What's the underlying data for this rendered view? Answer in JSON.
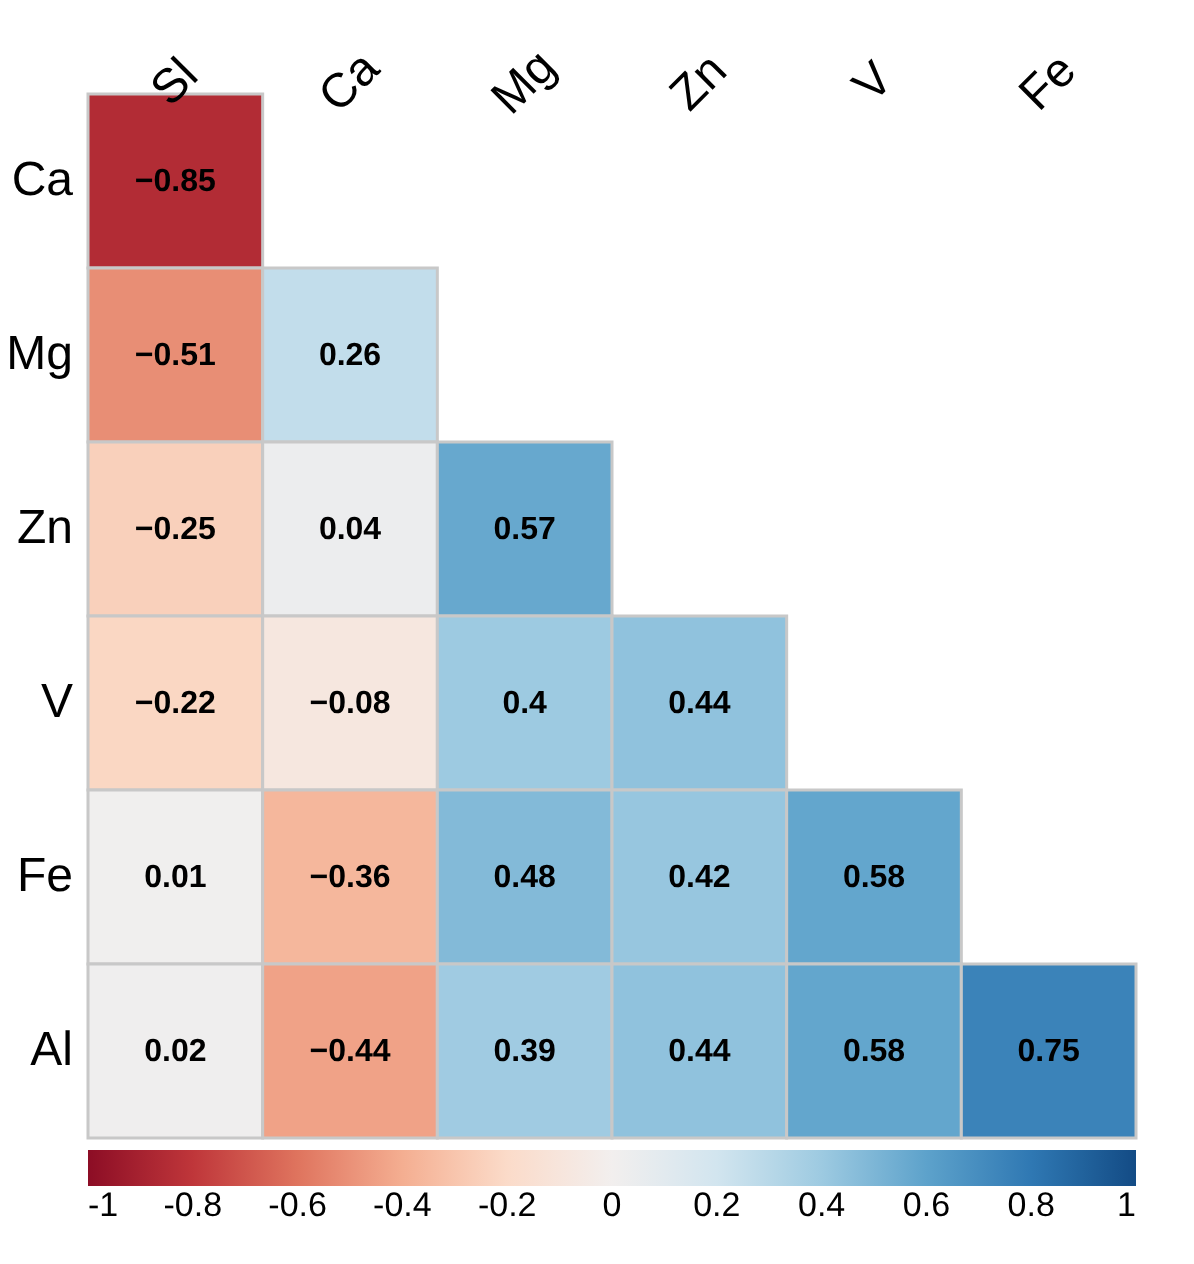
{
  "chart_data": {
    "type": "heatmap",
    "categories": [
      "Sl",
      "Ca",
      "Mg",
      "Zn",
      "V",
      "Fe"
    ],
    "y_categories": [
      "Ca",
      "Mg",
      "Zn",
      "V",
      "Fe",
      "Al"
    ],
    "cells": [
      [
        -0.85,
        null,
        null,
        null,
        null,
        null
      ],
      [
        -0.51,
        0.26,
        null,
        null,
        null,
        null
      ],
      [
        -0.25,
        0.04,
        0.57,
        null,
        null,
        null
      ],
      [
        -0.22,
        -0.08,
        0.4,
        0.44,
        null,
        null
      ],
      [
        0.01,
        -0.36,
        0.48,
        0.42,
        0.58,
        null
      ],
      [
        0.02,
        -0.44,
        0.39,
        0.44,
        0.58,
        0.75
      ]
    ],
    "clim": [
      -1,
      1
    ],
    "cticks": [
      -1,
      -0.8,
      -0.6,
      -0.4,
      -0.2,
      0,
      0.2,
      0.4,
      0.6,
      0.8,
      1
    ],
    "data_labels": true
  }
}
